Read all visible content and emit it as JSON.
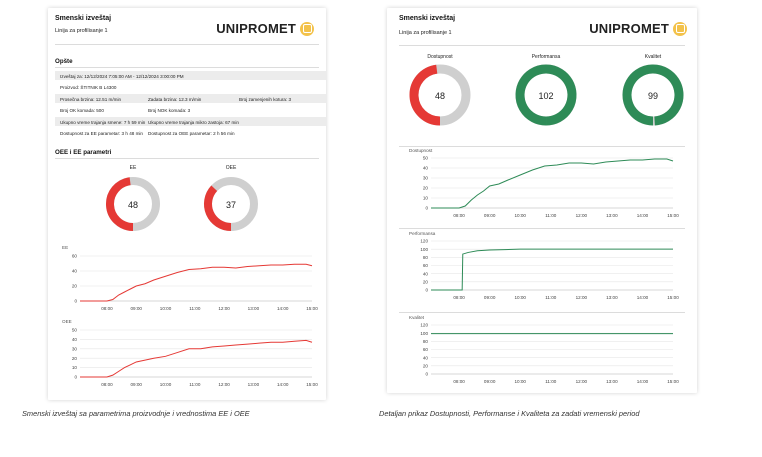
{
  "left": {
    "title": "Smenski izveštaj",
    "subtitle": "Linija za profilisanje 1",
    "logo": "UNIPROMET",
    "general_title": "Opšte",
    "rows": [
      {
        "shade": true,
        "cells": [
          "Izveštaj za:   12/12/2024 7:05:00 AM  -  12/12/2024 3:00:00 PM"
        ]
      },
      {
        "shade": false,
        "cells": [
          "Proizvod:   ŠTITNIK B L4300"
        ]
      },
      {
        "shade": true,
        "cells": [
          "Prosečna brzina:   12.51 m/min",
          "Zadata brzina:   12.3 m/min",
          "Broj zamenjenih kotura:   3"
        ]
      },
      {
        "shade": false,
        "cells": [
          "Broj OK komada:   500",
          "Broj NOK komada:   3"
        ]
      },
      {
        "shade": true,
        "cells": [
          "Ukupno vreme trajanja smene:   7 h  59 min",
          "Ukupno vreme trajanja mikro zastoja:   67 min"
        ]
      },
      {
        "shade": false,
        "cells": [
          "Dostupnost za EE parametar:   3 h  48 min",
          "Dostupnost za OEE parametar:   2 h  56 min"
        ]
      }
    ],
    "params_title": "OEE i EE parametri",
    "gauges": [
      {
        "label": "EE",
        "value": "48",
        "fraction": 0.48
      },
      {
        "label": "OEE",
        "value": "37",
        "fraction": 0.37
      }
    ]
  },
  "right": {
    "title": "Smenski izveštaj",
    "subtitle": "Linija za profilisanje 1",
    "logo": "UNIPROMET",
    "gauges": [
      {
        "label": "Dostupnost",
        "value": "48",
        "fraction": 0.48,
        "color": "#e53935"
      },
      {
        "label": "Performansa",
        "value": "102",
        "fraction": 1.0,
        "color": "#2e8b57"
      },
      {
        "label": "Kvalitet",
        "value": "99",
        "fraction": 0.99,
        "color": "#2e8b57"
      }
    ]
  },
  "captions": {
    "left": "Smenski izveštaj sa parametrima proizvodnje i vrednostima EE i OEE",
    "right": "Detaljan prikaz Dostupnosti, Performanse i Kvaliteta za zadati vremenski period"
  },
  "colors": {
    "red": "#e53935",
    "green": "#2e8b57",
    "track": "#cfcfcf"
  },
  "chart_data": [
    {
      "type": "line",
      "title": "EE",
      "color": "#e53935",
      "xticks": [
        "08:00",
        "09:00",
        "10:00",
        "11:00",
        "12:00",
        "13:00",
        "14:00",
        "15:00"
      ],
      "xlim": [
        7.08,
        15.0
      ],
      "ylim": [
        0,
        60
      ],
      "yticks": [
        0,
        20,
        40,
        60
      ],
      "x": [
        7.08,
        7.7,
        8.0,
        8.2,
        8.4,
        8.6,
        8.8,
        9.0,
        9.3,
        9.6,
        10.0,
        10.4,
        10.8,
        11.2,
        11.6,
        12.0,
        12.4,
        12.8,
        13.2,
        13.6,
        14.0,
        14.4,
        14.8,
        15.0
      ],
      "y": [
        0,
        0,
        0,
        2,
        8,
        12,
        16,
        20,
        23,
        28,
        33,
        38,
        42,
        43,
        45,
        45,
        44,
        46,
        47,
        48,
        48,
        49,
        49,
        47
      ]
    },
    {
      "type": "line",
      "title": "OEE",
      "color": "#e53935",
      "xticks": [
        "08:00",
        "09:00",
        "10:00",
        "11:00",
        "12:00",
        "13:00",
        "14:00",
        "15:00"
      ],
      "xlim": [
        7.08,
        15.0
      ],
      "ylim": [
        0,
        50
      ],
      "yticks": [
        0,
        10,
        20,
        30,
        40,
        50
      ],
      "x": [
        7.08,
        7.7,
        8.0,
        8.2,
        8.4,
        8.6,
        8.8,
        9.0,
        9.3,
        9.6,
        10.0,
        10.4,
        10.8,
        11.2,
        11.6,
        12.0,
        12.4,
        12.8,
        13.2,
        13.6,
        14.0,
        14.4,
        14.8,
        15.0
      ],
      "y": [
        0,
        0,
        0,
        2,
        6,
        10,
        13,
        16,
        18,
        20,
        22,
        26,
        30,
        30,
        32,
        33,
        34,
        35,
        36,
        37,
        37,
        38,
        39,
        37
      ]
    },
    {
      "type": "line",
      "title": "Dostupnost",
      "color": "#2e8b57",
      "xticks": [
        "08:00",
        "09:00",
        "10:00",
        "11:00",
        "12:00",
        "13:00",
        "14:00",
        "15:00"
      ],
      "xlim": [
        7.08,
        15.0
      ],
      "ylim": [
        0,
        50
      ],
      "yticks": [
        0,
        10,
        20,
        30,
        40,
        50
      ],
      "x": [
        7.08,
        7.7,
        8.0,
        8.2,
        8.4,
        8.6,
        8.8,
        9.0,
        9.3,
        9.6,
        10.0,
        10.4,
        10.8,
        11.2,
        11.6,
        12.0,
        12.4,
        12.8,
        13.2,
        13.6,
        14.0,
        14.4,
        14.8,
        15.0
      ],
      "y": [
        0,
        0,
        0,
        2,
        8,
        13,
        17,
        22,
        24,
        28,
        33,
        38,
        42,
        43,
        45,
        45,
        44,
        46,
        47,
        48,
        48,
        49,
        49,
        47
      ]
    },
    {
      "type": "line",
      "title": "Performansa",
      "color": "#2e8b57",
      "xticks": [
        "08:00",
        "09:00",
        "10:00",
        "11:00",
        "12:00",
        "13:00",
        "14:00",
        "15:00"
      ],
      "xlim": [
        7.08,
        15.0
      ],
      "ylim": [
        0,
        120
      ],
      "yticks": [
        0,
        20,
        40,
        60,
        80,
        100,
        120
      ],
      "x": [
        7.08,
        7.9,
        8.1,
        8.12,
        8.3,
        8.6,
        9.0,
        9.5,
        10.0,
        11.0,
        12.0,
        13.0,
        14.0,
        15.0
      ],
      "y": [
        0,
        0,
        0,
        88,
        92,
        96,
        98,
        99,
        100,
        100,
        100,
        100,
        100,
        100
      ]
    },
    {
      "type": "line",
      "title": "Kvalitet",
      "color": "#2e8b57",
      "xticks": [
        "08:00",
        "09:00",
        "10:00",
        "11:00",
        "12:00",
        "13:00",
        "14:00",
        "15:00"
      ],
      "xlim": [
        7.08,
        15.0
      ],
      "ylim": [
        0,
        120
      ],
      "yticks": [
        0,
        20,
        40,
        60,
        80,
        100,
        120
      ],
      "x": [
        7.08,
        8.0,
        9.0,
        10.0,
        11.0,
        12.0,
        13.0,
        14.0,
        15.0
      ],
      "y": [
        99,
        99,
        99,
        99,
        99,
        99,
        99,
        99,
        99
      ]
    }
  ]
}
